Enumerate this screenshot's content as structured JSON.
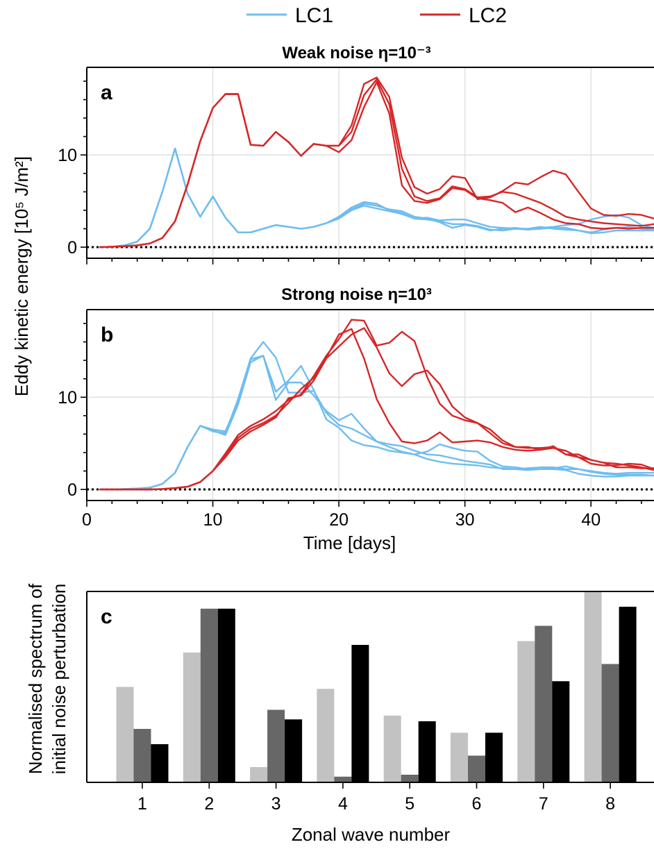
{
  "legend": [
    {
      "label": "LC1",
      "color": "#6fbdf0"
    },
    {
      "label": "LC2",
      "color": "#d62728"
    }
  ],
  "colors": {
    "lc1": "#6fbdf0",
    "lc2": "#d62728",
    "grid": "#dddddd",
    "bars": [
      "#c2c2c2",
      "#676767",
      "#000000"
    ]
  },
  "shared_ylabel": "Eddy kinetic energy [10⁵ J/m²]",
  "chart_data": [
    {
      "type": "line",
      "panel": "a",
      "title": "Weak noise η=10⁻³",
      "xlim": [
        0,
        45
      ],
      "ylim": [
        -1.2,
        19.5
      ],
      "xticks": [
        0,
        10,
        20,
        30,
        40
      ],
      "yticks": [
        0,
        10
      ],
      "grid": true,
      "zero_line": "dotted",
      "x": [
        1,
        2,
        3,
        4,
        5,
        6,
        7,
        8,
        9,
        10,
        11,
        12,
        13,
        14,
        15,
        16,
        17,
        18,
        19,
        20,
        21,
        22,
        23,
        24,
        25,
        26,
        27,
        28,
        29,
        30,
        31,
        32,
        33,
        34,
        35,
        36,
        37,
        38,
        39,
        40,
        41,
        42,
        43,
        44,
        45
      ],
      "series": [
        {
          "group": "LC1",
          "values": [
            0,
            0.05,
            0.2,
            0.6,
            2,
            6,
            10.7,
            5.8,
            3.3,
            5.5,
            3.2,
            1.6,
            1.6,
            2,
            2.4,
            2.2,
            2,
            2.2,
            2.6,
            3.3,
            4.3,
            4.9,
            4.7,
            4,
            3.7,
            3.1,
            3,
            2.8,
            2.5,
            2.5,
            2.3,
            1.9,
            1.8,
            2,
            1.9,
            2.1,
            2.2,
            2.4,
            2.5,
            3,
            3.3,
            3.5,
            3.2,
            2.4,
            2.1
          ]
        },
        {
          "group": "LC1",
          "values": [
            0,
            0.05,
            0.2,
            0.6,
            2,
            6,
            10.7,
            5.8,
            3.3,
            5.5,
            3.2,
            1.6,
            1.6,
            2,
            2.4,
            2.2,
            2,
            2.2,
            2.6,
            3.2,
            4.1,
            4.7,
            4.5,
            4.1,
            3.9,
            3.3,
            3.1,
            2.7,
            2.1,
            2.4,
            2.2,
            1.8,
            2,
            2.1,
            1.9,
            2,
            2.1,
            2.1,
            1.8,
            1.6,
            1.9,
            2.1,
            2.2,
            2,
            1.9
          ]
        },
        {
          "group": "LC1",
          "values": [
            0,
            0.05,
            0.2,
            0.6,
            2,
            6,
            10.7,
            5.8,
            3.3,
            5.5,
            3.2,
            1.6,
            1.6,
            2,
            2.4,
            2.2,
            2,
            2.2,
            2.6,
            3.1,
            4,
            4.5,
            4.2,
            3.9,
            3.6,
            3.1,
            3.2,
            2.9,
            3,
            3,
            2.6,
            2.2,
            2.1,
            2,
            2,
            2.2,
            2,
            1.9,
            1.8,
            1.5,
            1.6,
            1.8,
            1.8,
            1.8,
            1.8
          ]
        },
        {
          "group": "LC2",
          "values": [
            0,
            0.05,
            0.1,
            0.2,
            0.4,
            1,
            2.8,
            6.8,
            11.5,
            15.1,
            16.6,
            16.6,
            11.1,
            11,
            12.5,
            11.4,
            9.9,
            11.2,
            11,
            11,
            13.2,
            17.7,
            18.4,
            16.3,
            9.7,
            6.5,
            5.8,
            6.3,
            7.7,
            7.5,
            5.2,
            5.4,
            6.1,
            7,
            6.8,
            7.6,
            8.3,
            7.9,
            6,
            4.2,
            3.5,
            3.4,
            3.6,
            3.5,
            3.1
          ]
        },
        {
          "group": "LC2",
          "values": [
            0,
            0.05,
            0.1,
            0.2,
            0.4,
            1,
            2.8,
            6.8,
            11.5,
            15.1,
            16.6,
            16.6,
            11.1,
            11,
            12.5,
            11.4,
            9.9,
            11.2,
            11,
            11,
            12.5,
            16.5,
            18.2,
            15.5,
            8.5,
            5.5,
            5,
            5.3,
            6.6,
            6.3,
            5.4,
            5.5,
            6,
            5.8,
            5.3,
            4.8,
            4.1,
            3.3,
            3,
            2.8,
            2.6,
            2.5,
            2.4,
            2.3,
            2.5
          ]
        },
        {
          "group": "LC2",
          "values": [
            0,
            0.05,
            0.1,
            0.2,
            0.4,
            1,
            2.8,
            6.8,
            11.5,
            15.1,
            16.6,
            16.6,
            11.1,
            11,
            12.5,
            11.4,
            9.9,
            11.2,
            11,
            10.3,
            11.6,
            15.2,
            17.9,
            14.5,
            6.7,
            5,
            4.8,
            5.2,
            6.4,
            6.2,
            5.3,
            5.1,
            4.8,
            3.8,
            4.3,
            3.7,
            3,
            2.6,
            2.5,
            2.1,
            2,
            2.1,
            2,
            2.1,
            2.1
          ]
        }
      ]
    },
    {
      "type": "line",
      "panel": "b",
      "title": "Strong noise η=10³",
      "xlabel": "Time [days]",
      "xlim": [
        0,
        45
      ],
      "ylim": [
        -1.2,
        19.5
      ],
      "xticks": [
        0,
        10,
        20,
        30,
        40
      ],
      "yticks": [
        0,
        10
      ],
      "grid": true,
      "zero_line": "dotted",
      "x": [
        1,
        2,
        3,
        4,
        5,
        6,
        7,
        8,
        9,
        10,
        11,
        12,
        13,
        14,
        15,
        16,
        17,
        18,
        19,
        20,
        21,
        22,
        23,
        24,
        25,
        26,
        27,
        28,
        29,
        30,
        31,
        32,
        33,
        34,
        35,
        36,
        37,
        38,
        39,
        40,
        41,
        42,
        43,
        44,
        45
      ],
      "series": [
        {
          "group": "LC1",
          "values": [
            0,
            0,
            0.05,
            0.1,
            0.2,
            0.6,
            1.8,
            4.6,
            6.9,
            6.5,
            6.3,
            9.5,
            14.1,
            14.5,
            9.7,
            11.6,
            11.6,
            10.2,
            8.5,
            7.5,
            8.2,
            6.6,
            5.2,
            4.9,
            4.7,
            4.2,
            3.8,
            3.7,
            3.4,
            3.1,
            2.9,
            2.7,
            2.2,
            2.2,
            2.3,
            2.4,
            2.4,
            2.2,
            2.2,
            2,
            1.8,
            1.7,
            1.8,
            1.8,
            1.8
          ]
        },
        {
          "group": "LC1",
          "values": [
            0,
            0,
            0.05,
            0.1,
            0.2,
            0.6,
            1.8,
            4.6,
            6.9,
            6.3,
            6.1,
            9.8,
            14.2,
            16,
            14.3,
            10.5,
            10.5,
            10.7,
            8.3,
            7,
            6.6,
            5.9,
            5.2,
            4.6,
            4.1,
            3.8,
            4.1,
            4.9,
            4.5,
            4.2,
            4.1,
            3.1,
            2.5,
            2.4,
            2.2,
            2.2,
            2.3,
            2.5,
            2.2,
            1.9,
            1.7,
            1.6,
            1.6,
            1.6,
            1.5
          ]
        },
        {
          "group": "LC1",
          "values": [
            0,
            0,
            0.05,
            0.1,
            0.2,
            0.6,
            1.8,
            4.6,
            6.9,
            6.4,
            5.9,
            9.2,
            13.8,
            14.5,
            10.6,
            11.8,
            13.4,
            10.8,
            7.6,
            6.7,
            5.3,
            4.8,
            4.6,
            4.2,
            4,
            3.8,
            3.3,
            3,
            2.8,
            2.7,
            2.6,
            2.4,
            2.3,
            2.2,
            2.1,
            2.2,
            2.2,
            2.1,
            1.7,
            1.5,
            1.4,
            1.4,
            1.5,
            1.5,
            1.5
          ]
        },
        {
          "group": "LC2",
          "values": [
            0,
            0,
            0,
            0,
            0,
            0.05,
            0.15,
            0.3,
            0.8,
            2,
            3.9,
            5.9,
            6.9,
            7.6,
            8.5,
            9.7,
            10.3,
            12.3,
            14.5,
            16.3,
            18.4,
            18.3,
            15.6,
            15.9,
            17.1,
            16.1,
            12.2,
            9.3,
            8,
            7.5,
            7.2,
            6.1,
            5,
            4.6,
            4.5,
            4.5,
            4.6,
            3.8,
            3.5,
            2.8,
            2.6,
            2.6,
            2.8,
            2.7,
            2.2
          ]
        },
        {
          "group": "LC2",
          "values": [
            0,
            0,
            0,
            0,
            0,
            0.05,
            0.15,
            0.3,
            0.8,
            2,
            3.7,
            5.6,
            6.6,
            7.2,
            8,
            9.4,
            10.9,
            12.1,
            14.3,
            16.8,
            17.4,
            14.2,
            9.8,
            7.2,
            5.2,
            5,
            5.3,
            6.2,
            5.1,
            5.2,
            5.3,
            5.1,
            4.6,
            4.3,
            4.2,
            4.3,
            4.7,
            3.8,
            3.8,
            3.2,
            2.9,
            2.8,
            2.6,
            2.4,
            2.1
          ]
        },
        {
          "group": "LC2",
          "values": [
            0,
            0,
            0,
            0,
            0,
            0.05,
            0.15,
            0.3,
            0.8,
            2,
            3.5,
            5.3,
            6.3,
            7,
            7.8,
            9.9,
            10.2,
            11.8,
            14.2,
            15.5,
            16.8,
            17.5,
            15.4,
            12.6,
            11.2,
            12.5,
            12.9,
            11.4,
            9,
            7.8,
            7.2,
            6.5,
            5.3,
            4.6,
            4.6,
            4.3,
            4.5,
            4.2,
            3.5,
            3.2,
            2.9,
            2.4,
            2.4,
            2.3,
            2.3
          ]
        }
      ]
    },
    {
      "type": "bar",
      "panel": "c",
      "xlabel": "Zonal wave number",
      "ylabel": "Normalised spectrum of\ninitial noise perturbation",
      "categories": [
        "1",
        "2",
        "3",
        "4",
        "5",
        "6",
        "7",
        "8"
      ],
      "ylim": [
        0,
        1
      ],
      "grid": false,
      "series": [
        {
          "values": [
            0.5,
            0.68,
            0.08,
            0.49,
            0.35,
            0.26,
            0.74,
            1.0
          ]
        },
        {
          "values": [
            0.28,
            0.91,
            0.38,
            0.03,
            0.04,
            0.14,
            0.82,
            0.62
          ]
        },
        {
          "values": [
            0.2,
            0.91,
            0.33,
            0.72,
            0.32,
            0.26,
            0.53,
            0.92
          ]
        }
      ]
    }
  ]
}
